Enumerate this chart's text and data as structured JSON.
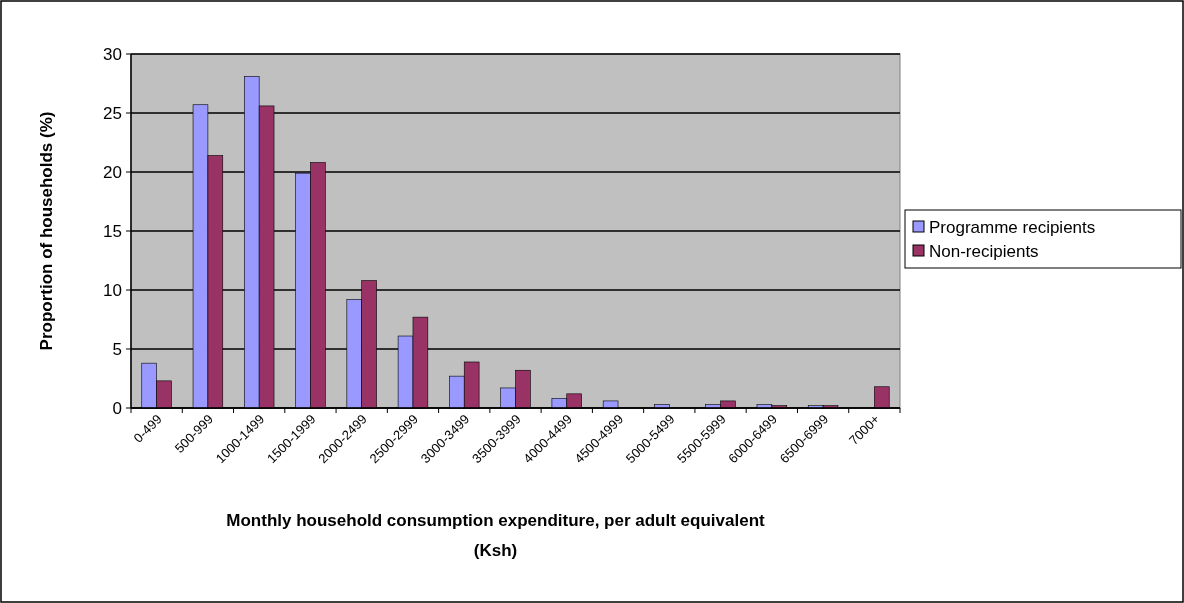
{
  "chart_data": {
    "type": "bar",
    "xlabel": "Monthly household consumption expenditure, per adult equivalent (Ksh)",
    "ylabel": "Proportion of households (%)",
    "categories": [
      "0-499",
      "500-999",
      "1000-1499",
      "1500-1999",
      "2000-2499",
      "2500-2999",
      "3000-3499",
      "3500-3999",
      "4000-4499",
      "4500-4999",
      "5000-5499",
      "5500-5999",
      "6000-6499",
      "6500-6999",
      "7000+"
    ],
    "series": [
      {
        "name": "Programme recipients",
        "color": "#9999ff",
        "values": [
          3.8,
          25.7,
          28.1,
          19.9,
          9.2,
          6.1,
          2.7,
          1.7,
          0.8,
          0.6,
          0.3,
          0.3,
          0.3,
          0.2,
          0
        ]
      },
      {
        "name": "Non-recipients",
        "color": "#993366",
        "values": [
          2.3,
          21.4,
          25.6,
          20.8,
          10.8,
          7.7,
          3.9,
          3.2,
          1.2,
          0,
          0,
          0.6,
          0.2,
          0.2,
          1.8
        ]
      }
    ],
    "ylim": [
      0,
      30
    ],
    "yticks": [
      0,
      5,
      10,
      15,
      20,
      25,
      30
    ],
    "grid": "y",
    "legend": "right"
  }
}
